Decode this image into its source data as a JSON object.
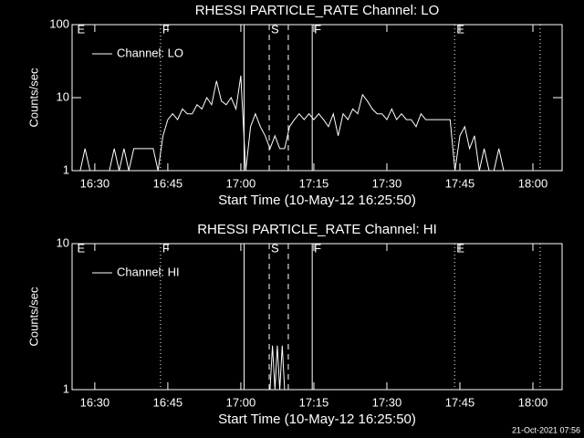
{
  "chart_data": [
    {
      "type": "line",
      "title": "RHESSI PARTICLE_RATE Channel: LO",
      "xlabel": "Start Time (10-May-12 16:25:50)",
      "ylabel": "Counts/sec",
      "log_y": true,
      "ylim": [
        1,
        100
      ],
      "yticks": [
        1,
        10,
        100
      ],
      "xlim": [
        "16:25:20",
        "18:06"
      ],
      "xticks": [
        "16:30",
        "16:45",
        "17:00",
        "17:15",
        "17:30",
        "17:45",
        "18:00"
      ],
      "legend": "top-left",
      "color": "#ffffff",
      "markers": [
        {
          "x": "16:26",
          "label": "E"
        },
        {
          "x": "16:43:30",
          "style": "dotted",
          "label": "F"
        },
        {
          "x": "17:00:40",
          "style": "solid"
        },
        {
          "x": "17:05:50",
          "style": "dashed",
          "label": "S"
        },
        {
          "x": "17:09:45",
          "style": "dashed"
        },
        {
          "x": "17:14:40",
          "style": "solid",
          "label": "F"
        },
        {
          "x": "17:43:55",
          "style": "dotted",
          "label": "E"
        },
        {
          "x": "18:01:30",
          "style": "dotted"
        }
      ],
      "x": [
        "16:26",
        "16:27",
        "16:28",
        "16:29",
        "16:30",
        "16:31",
        "16:32",
        "16:33",
        "16:34",
        "16:35",
        "16:36",
        "16:37",
        "16:38",
        "16:39",
        "16:40",
        "16:41",
        "16:42",
        "16:43",
        "16:44",
        "16:45",
        "16:46",
        "16:47",
        "16:48",
        "16:49",
        "16:50",
        "16:51",
        "16:52",
        "16:53",
        "16:54",
        "16:55",
        "16:56",
        "16:57",
        "16:58",
        "16:59",
        "17:00",
        "17:01",
        "17:02",
        "17:03",
        "17:04",
        "17:05",
        "17:06",
        "17:07",
        "17:08",
        "17:09",
        "17:10",
        "17:11",
        "17:12",
        "17:13",
        "17:14",
        "17:15",
        "17:16",
        "17:17",
        "17:18",
        "17:19",
        "17:20",
        "17:21",
        "17:22",
        "17:23",
        "17:24",
        "17:25",
        "17:26",
        "17:27",
        "17:28",
        "17:29",
        "17:30",
        "17:31",
        "17:32",
        "17:33",
        "17:34",
        "17:35",
        "17:36",
        "17:37",
        "17:38",
        "17:39",
        "17:40",
        "17:41",
        "17:42",
        "17:43",
        "17:44",
        "17:45",
        "17:46",
        "17:47",
        "17:48",
        "17:49",
        "17:50",
        "17:51",
        "17:52",
        "17:53",
        "17:54"
      ],
      "series": [
        {
          "name": "Channel: LO",
          "values": [
            1,
            1,
            2,
            1,
            1,
            1,
            1,
            1,
            2,
            1,
            2,
            1,
            2,
            2,
            2,
            2,
            2,
            1,
            3,
            5,
            6,
            5,
            7,
            6,
            6,
            8,
            7,
            10,
            8,
            17,
            9,
            8,
            10,
            7,
            20,
            1,
            4,
            6,
            4,
            3,
            2,
            3,
            2,
            2,
            4,
            5,
            6,
            5,
            6,
            5,
            6,
            5,
            4,
            6,
            3,
            6,
            5,
            7,
            6,
            11,
            9,
            7,
            6,
            6,
            5,
            7,
            5,
            6,
            5,
            5,
            4,
            6,
            5,
            5,
            5,
            5,
            5,
            5,
            1,
            3,
            4,
            2,
            3,
            1,
            2,
            1,
            1,
            2,
            1
          ]
        }
      ]
    },
    {
      "type": "line",
      "title": "RHESSI PARTICLE_RATE Channel: HI",
      "xlabel": "Start Time (10-May-12 16:25:50)",
      "ylabel": "Counts/sec",
      "log_y": true,
      "ylim": [
        1,
        10
      ],
      "yticks": [
        1,
        10
      ],
      "xlim": [
        "16:25:20",
        "18:06"
      ],
      "xticks": [
        "16:30",
        "16:45",
        "17:00",
        "17:15",
        "17:30",
        "17:45",
        "18:00"
      ],
      "legend": "top-left",
      "color": "#ffffff",
      "markers": [
        {
          "x": "16:26",
          "label": "E"
        },
        {
          "x": "16:43:30",
          "style": "dotted",
          "label": "F"
        },
        {
          "x": "17:00:40",
          "style": "solid"
        },
        {
          "x": "17:05:50",
          "style": "dashed",
          "label": "S"
        },
        {
          "x": "17:09:45",
          "style": "dashed"
        },
        {
          "x": "17:14:40",
          "style": "solid",
          "label": "F"
        },
        {
          "x": "17:43:55",
          "style": "dotted",
          "label": "E"
        },
        {
          "x": "18:01:30",
          "style": "dotted"
        }
      ],
      "x": [
        "16:26",
        "17:06",
        "17:06:30",
        "17:07",
        "17:07:30",
        "17:08",
        "17:08:30",
        "17:09",
        "17:54"
      ],
      "series": [
        {
          "name": "Channel: HI",
          "values": [
            1,
            1,
            2,
            1,
            2,
            1,
            2,
            1,
            1
          ]
        }
      ]
    }
  ],
  "footer": "21-Oct-2021 07:56"
}
